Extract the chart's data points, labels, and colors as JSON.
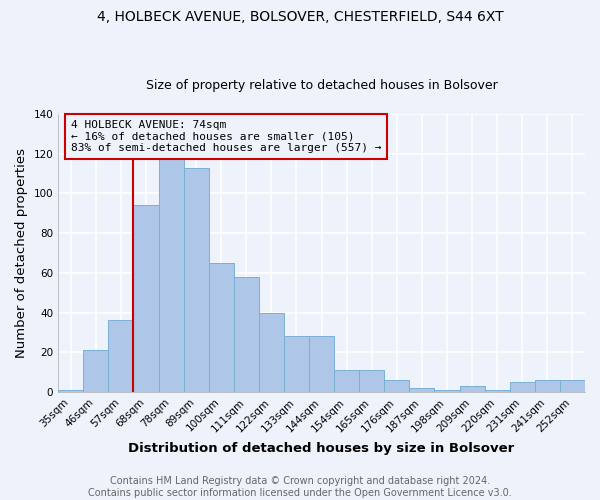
{
  "title_line1": "4, HOLBECK AVENUE, BOLSOVER, CHESTERFIELD, S44 6XT",
  "title_line2": "Size of property relative to detached houses in Bolsover",
  "xlabel": "Distribution of detached houses by size in Bolsover",
  "ylabel": "Number of detached properties",
  "categories": [
    "35sqm",
    "46sqm",
    "57sqm",
    "68sqm",
    "78sqm",
    "89sqm",
    "100sqm",
    "111sqm",
    "122sqm",
    "133sqm",
    "144sqm",
    "154sqm",
    "165sqm",
    "176sqm",
    "187sqm",
    "198sqm",
    "209sqm",
    "220sqm",
    "231sqm",
    "241sqm",
    "252sqm"
  ],
  "values": [
    1,
    21,
    36,
    94,
    118,
    113,
    65,
    58,
    40,
    28,
    28,
    11,
    11,
    6,
    2,
    1,
    3,
    1,
    5,
    6,
    6
  ],
  "bar_color": "#aec6e8",
  "bar_edge_color": "#7aafd4",
  "annotation_line1": "4 HOLBECK AVENUE: 74sqm",
  "annotation_line2": "← 16% of detached houses are smaller (105)",
  "annotation_line3": "83% of semi-detached houses are larger (557) →",
  "annotation_box_color": "#cc0000",
  "vertical_line_x": 2.5,
  "ylim": [
    0,
    140
  ],
  "yticks": [
    0,
    20,
    40,
    60,
    80,
    100,
    120,
    140
  ],
  "footer_line1": "Contains HM Land Registry data © Crown copyright and database right 2024.",
  "footer_line2": "Contains public sector information licensed under the Open Government Licence v3.0.",
  "bg_color": "#eef2fb",
  "grid_color": "#ffffff",
  "title_fontsize": 10,
  "subtitle_fontsize": 9,
  "axis_label_fontsize": 9.5,
  "tick_fontsize": 7.5,
  "footer_fontsize": 7,
  "annotation_fontsize": 8
}
